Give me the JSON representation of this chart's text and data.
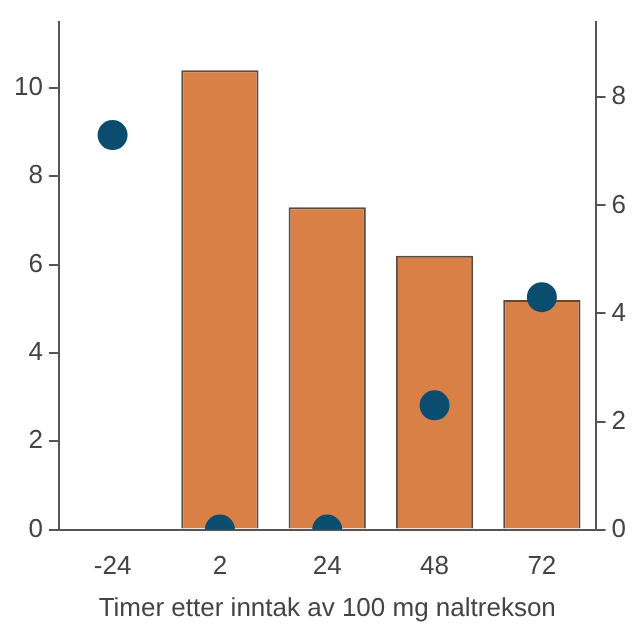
{
  "chart_data": {
    "type": "bar",
    "xlabel": "Timer etter inntak av 100 mg naltrekson",
    "categories": [
      "-24",
      "2",
      "24",
      "48",
      "72"
    ],
    "series": [
      {
        "type": "bar",
        "color": "#d98046",
        "values": [
          null,
          10.4,
          7.3,
          6.2,
          5.2
        ]
      },
      {
        "type": "scatter",
        "axis": "y2",
        "color": "#0b4d6e",
        "marker": "circle",
        "values": [
          7.3,
          0,
          0,
          2.3,
          4.3
        ]
      }
    ],
    "ylim": [
      0,
      11.5
    ],
    "yticks": [
      0,
      2,
      4,
      6,
      8,
      10
    ],
    "y2lim": [
      0,
      9.4
    ],
    "y2ticks": [
      0,
      2,
      4,
      6,
      8
    ],
    "grid": false,
    "legend": false
  }
}
